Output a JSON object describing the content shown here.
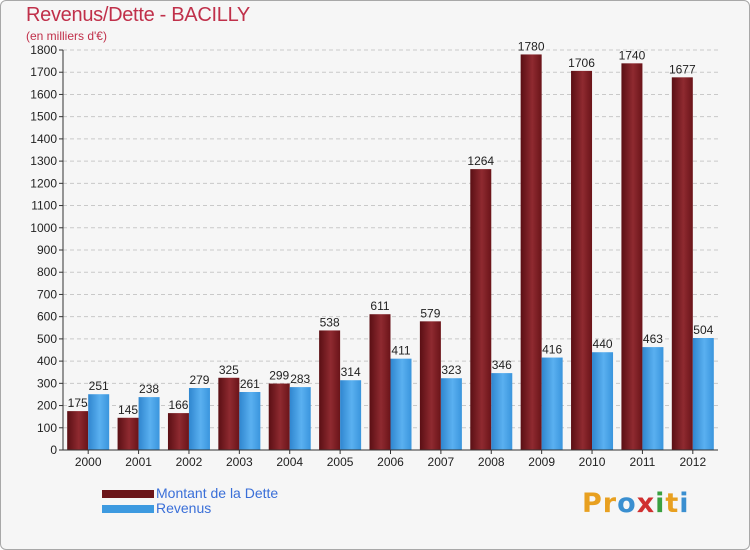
{
  "title": "Revenus/Dette - BACILLY",
  "subtitle": "(en milliers d'€)",
  "brand": {
    "text": "Proxiti",
    "letters": [
      "P",
      "r",
      "o",
      "x",
      "i",
      "t",
      "i"
    ],
    "colors": [
      "#e8a020",
      "#e8a020",
      "#3a8fd0",
      "#d03030",
      "#3aa040",
      "#e8a020",
      "#3a8fd0"
    ]
  },
  "colors": {
    "dette": "#7a1a1f",
    "revenus": "#3d9ae0",
    "title": "#c0304a",
    "legend_text": "#3a6fd8"
  },
  "chart_data": {
    "type": "bar",
    "title": "Revenus/Dette - BACILLY",
    "ylabel": "(en milliers d'€)",
    "xlabel": "",
    "ylim": [
      0,
      1800
    ],
    "yticks": [
      0,
      100,
      200,
      300,
      400,
      500,
      600,
      700,
      800,
      900,
      1000,
      1100,
      1200,
      1300,
      1400,
      1500,
      1600,
      1700,
      1800
    ],
    "grid": true,
    "legend_position": "bottom-left",
    "categories": [
      "2000",
      "2001",
      "2002",
      "2003",
      "2004",
      "2005",
      "2006",
      "2007",
      "2008",
      "2009",
      "2010",
      "2011",
      "2012"
    ],
    "series": [
      {
        "name": "Montant de la Dette",
        "key": "dette",
        "values": [
          175,
          145,
          166,
          325,
          299,
          538,
          611,
          579,
          1264,
          1780,
          1706,
          1740,
          1677
        ]
      },
      {
        "name": "Revenus",
        "key": "revenus",
        "values": [
          251,
          238,
          279,
          261,
          283,
          314,
          411,
          323,
          346,
          416,
          440,
          463,
          504
        ]
      }
    ]
  }
}
